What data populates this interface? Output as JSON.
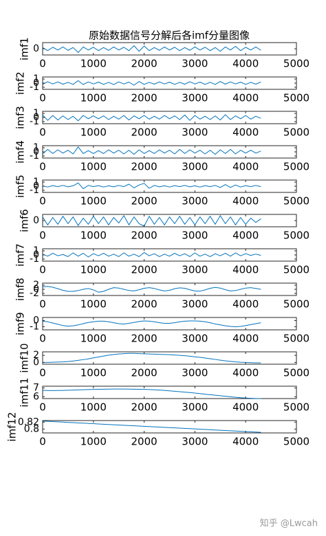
{
  "title": "原始数据信号分解后各imf分量图像",
  "watermark": "知乎 @Lwcah",
  "chart_data": [
    {
      "type": "line",
      "ylabel": "imf1",
      "color": "#0072bd",
      "xlim": [
        0,
        5000
      ],
      "xticks": [
        0,
        1000,
        2000,
        3000,
        4000,
        5000
      ],
      "ylim": [
        -1,
        1
      ],
      "yticks": [
        0
      ],
      "x": [
        0,
        100,
        200,
        300,
        400,
        500,
        600,
        700,
        800,
        900,
        1000,
        1100,
        1200,
        1300,
        1400,
        1500,
        1600,
        1700,
        1800,
        1900,
        2000,
        2100,
        2200,
        2300,
        2400,
        2500,
        2600,
        2700,
        2800,
        2900,
        3000,
        3100,
        3200,
        3300,
        3400,
        3500,
        3600,
        3700,
        3800,
        3900,
        4000,
        4100,
        4200,
        4300
      ],
      "values": [
        0.2,
        -0.3,
        0.25,
        -0.2,
        0.3,
        -0.25,
        0.2,
        -0.6,
        0.3,
        -0.2,
        0.25,
        -0.3,
        0.2,
        -0.25,
        0.3,
        -0.2,
        0.25,
        -0.3,
        0.5,
        -0.4,
        0.45,
        -0.3,
        0.2,
        -0.25,
        0.3,
        -0.2,
        0.25,
        -0.3,
        0.2,
        -0.25,
        0.3,
        -0.2,
        0.25,
        -0.3,
        0.2,
        -0.4,
        0.3,
        -0.2,
        0.4,
        -0.3,
        0.25,
        -0.2,
        0.3,
        -0.25
      ]
    },
    {
      "type": "line",
      "ylabel": "imf2",
      "color": "#0072bd",
      "xlim": [
        0,
        5000
      ],
      "xticks": [
        0,
        1000,
        2000,
        3000,
        4000,
        5000
      ],
      "ylim": [
        -1.5,
        1.5
      ],
      "yticks": [
        -1,
        0,
        1
      ],
      "x": [
        0,
        100,
        200,
        300,
        400,
        500,
        600,
        700,
        800,
        900,
        1000,
        1100,
        1200,
        1300,
        1400,
        1500,
        1600,
        1700,
        1800,
        1900,
        2000,
        2100,
        2200,
        2300,
        2400,
        2500,
        2600,
        2700,
        2800,
        2900,
        3000,
        3100,
        3200,
        3300,
        3400,
        3500,
        3600,
        3700,
        3800,
        3900,
        4000,
        4100,
        4200,
        4300
      ],
      "values": [
        -0.3,
        0.35,
        -0.2,
        0.3,
        -0.25,
        0.2,
        -0.3,
        0.6,
        -0.35,
        0.3,
        -0.2,
        0.25,
        -0.3,
        0.2,
        -0.35,
        0.3,
        -0.2,
        0.25,
        -0.5,
        0.4,
        -0.3,
        0.2,
        -0.25,
        0.3,
        -0.2,
        0.25,
        -0.3,
        0.2,
        -0.25,
        0.35,
        -0.2,
        0.25,
        -0.3,
        0.2,
        -0.3,
        0.4,
        -0.25,
        0.3,
        -0.2,
        0.25,
        -0.3,
        0.2,
        -0.25,
        0.3
      ]
    },
    {
      "type": "line",
      "ylabel": "imf3",
      "color": "#0072bd",
      "xlim": [
        0,
        5000
      ],
      "xticks": [
        0,
        1000,
        2000,
        3000,
        4000,
        5000
      ],
      "ylim": [
        -1.5,
        1.5
      ],
      "yticks": [
        -1,
        0,
        1
      ],
      "x": [
        0,
        100,
        200,
        300,
        400,
        500,
        600,
        700,
        800,
        900,
        1000,
        1100,
        1200,
        1300,
        1400,
        1500,
        1600,
        1700,
        1800,
        1900,
        2000,
        2100,
        2200,
        2300,
        2400,
        2500,
        2600,
        2700,
        2800,
        2900,
        3000,
        3100,
        3200,
        3300,
        3400,
        3500,
        3600,
        3700,
        3800,
        3900,
        4000,
        4100,
        4200,
        4300
      ],
      "values": [
        0.6,
        -0.7,
        0.5,
        -0.6,
        0.4,
        -0.5,
        0.3,
        -0.8,
        0.5,
        -0.3,
        0.4,
        -0.3,
        0.4,
        -0.5,
        0.3,
        -0.4,
        0.5,
        -0.6,
        0.4,
        -0.3,
        0.5,
        -0.4,
        0.3,
        -0.4,
        0.5,
        -0.3,
        0.4,
        -0.5,
        0.6,
        -0.7,
        0.5,
        -0.4,
        0.3,
        -0.5,
        0.4,
        -0.6,
        0.7,
        -0.5,
        0.4,
        -0.3,
        0.5,
        -0.4,
        0.3,
        -0.2
      ]
    },
    {
      "type": "line",
      "ylabel": "imf4",
      "color": "#0072bd",
      "xlim": [
        0,
        5000
      ],
      "xticks": [
        0,
        1000,
        2000,
        3000,
        4000,
        5000
      ],
      "ylim": [
        -1.5,
        1.5
      ],
      "yticks": [
        -1,
        0,
        1
      ],
      "x": [
        0,
        100,
        200,
        300,
        400,
        500,
        600,
        700,
        800,
        900,
        1000,
        1100,
        1200,
        1300,
        1400,
        1500,
        1600,
        1700,
        1800,
        1900,
        2000,
        2100,
        2200,
        2300,
        2400,
        2500,
        2600,
        2700,
        2800,
        2900,
        3000,
        3100,
        3200,
        3300,
        3400,
        3500,
        3600,
        3700,
        3800,
        3900,
        4000,
        4100,
        4200,
        4300
      ],
      "values": [
        -0.5,
        0.6,
        -0.4,
        0.5,
        -0.3,
        0.4,
        -0.5,
        1.2,
        -0.4,
        0.3,
        -0.4,
        0.3,
        -0.4,
        0.5,
        -0.3,
        0.4,
        -0.5,
        0.4,
        -0.6,
        0.5,
        -0.4,
        0.3,
        -0.4,
        0.5,
        -0.3,
        0.4,
        -0.5,
        0.6,
        -0.4,
        0.5,
        -0.3,
        0.4,
        -0.5,
        0.4,
        -0.6,
        0.5,
        -0.4,
        0.6,
        -0.5,
        0.4,
        -0.3,
        0.4,
        -0.3,
        0.2
      ]
    },
    {
      "type": "line",
      "ylabel": "imf5",
      "color": "#0072bd",
      "xlim": [
        0,
        5000
      ],
      "xticks": [
        0,
        1000,
        2000,
        3000,
        4000,
        5000
      ],
      "ylim": [
        -1.5,
        1.5
      ],
      "yticks": [
        -1,
        0,
        1
      ],
      "x": [
        0,
        100,
        200,
        300,
        400,
        500,
        600,
        700,
        800,
        900,
        1000,
        1100,
        1200,
        1300,
        1400,
        1500,
        1600,
        1700,
        1800,
        1900,
        2000,
        2100,
        2200,
        2300,
        2400,
        2500,
        2600,
        2700,
        2800,
        2900,
        3000,
        3100,
        3200,
        3300,
        3400,
        3500,
        3600,
        3700,
        3800,
        3900,
        4000,
        4100,
        4200,
        4300
      ],
      "values": [
        0.1,
        -0.2,
        0.15,
        -0.1,
        0.2,
        -0.15,
        0.1,
        0.8,
        -0.6,
        0.2,
        -0.1,
        0.15,
        -0.2,
        0.1,
        -0.15,
        0.2,
        -0.1,
        0.5,
        -0.4,
        0.3,
        0.7,
        -0.5,
        0.2,
        -0.15,
        0.1,
        -0.2,
        0.15,
        -0.1,
        0.2,
        -0.15,
        0.1,
        -0.2,
        0.15,
        -0.1,
        0.2,
        -0.3,
        0.4,
        -0.3,
        0.3,
        -0.2,
        0.15,
        -0.1,
        0.2,
        -0.1
      ]
    },
    {
      "type": "line",
      "ylabel": "imf6",
      "color": "#0072bd",
      "xlim": [
        0,
        5000
      ],
      "xticks": [
        0,
        1000,
        2000,
        3000,
        4000,
        5000
      ],
      "ylim": [
        -1,
        1
      ],
      "yticks": [
        0
      ],
      "x": [
        0,
        100,
        200,
        300,
        400,
        500,
        600,
        700,
        800,
        900,
        1000,
        1100,
        1200,
        1300,
        1400,
        1500,
        1600,
        1700,
        1800,
        1900,
        2000,
        2100,
        2200,
        2300,
        2400,
        2500,
        2600,
        2700,
        2800,
        2900,
        3000,
        3100,
        3200,
        3300,
        3400,
        3500,
        3600,
        3700,
        3800,
        3900,
        4000,
        4100,
        4200,
        4300
      ],
      "values": [
        0.6,
        -0.7,
        0.5,
        -0.6,
        0.7,
        -0.5,
        0.6,
        -0.8,
        0.4,
        -0.6,
        0.7,
        -0.5,
        0.6,
        -0.7,
        0.5,
        -0.4,
        0.8,
        -0.7,
        0.6,
        -0.5,
        -0.9,
        0.7,
        -0.6,
        0.5,
        -0.7,
        0.6,
        -0.5,
        0.7,
        -0.6,
        0.5,
        -0.7,
        0.6,
        -0.5,
        0.7,
        -0.6,
        0.8,
        -0.5,
        0.6,
        -0.7,
        0.5,
        -0.6,
        0.4,
        -0.3,
        0.3
      ]
    },
    {
      "type": "line",
      "ylabel": "imf7",
      "color": "#0072bd",
      "xlim": [
        0,
        5000
      ],
      "xticks": [
        0,
        1000,
        2000,
        3000,
        4000,
        5000
      ],
      "ylim": [
        -1.5,
        1.5
      ],
      "yticks": [
        -1,
        0,
        1
      ],
      "x": [
        0,
        100,
        200,
        300,
        400,
        500,
        600,
        700,
        800,
        900,
        1000,
        1100,
        1200,
        1300,
        1400,
        1500,
        1600,
        1700,
        1800,
        1900,
        2000,
        2100,
        2200,
        2300,
        2400,
        2500,
        2600,
        2700,
        2800,
        2900,
        3000,
        3100,
        3200,
        3300,
        3400,
        3500,
        3600,
        3700,
        3800,
        3900,
        4000,
        4100,
        4200,
        4300
      ],
      "values": [
        0.2,
        -0.3,
        0.4,
        -0.2,
        0.1,
        -0.4,
        0.5,
        -0.3,
        0.4,
        -0.5,
        0.3,
        -0.2,
        0.4,
        -0.3,
        0.2,
        -0.4,
        0.5,
        -0.3,
        0.2,
        -0.4,
        0.6,
        -0.2,
        0.3,
        -0.4,
        0.2,
        -0.3,
        0.4,
        -0.2,
        0.3,
        -0.4,
        0.5,
        -0.3,
        0.2,
        -0.4,
        0.3,
        -0.2,
        0.4,
        -0.3,
        0.5,
        -0.2,
        0.3,
        -0.1,
        0.2,
        -0.1
      ]
    },
    {
      "type": "line",
      "ylabel": "imf8",
      "color": "#0072bd",
      "xlim": [
        0,
        5000
      ],
      "xticks": [
        0,
        1000,
        2000,
        3000,
        4000,
        5000
      ],
      "ylim": [
        -3,
        3
      ],
      "yticks": [
        -2,
        0,
        2
      ],
      "x": [
        0,
        100,
        200,
        300,
        400,
        500,
        600,
        700,
        800,
        900,
        1000,
        1100,
        1200,
        1300,
        1400,
        1500,
        1600,
        1700,
        1800,
        1900,
        2000,
        2100,
        2200,
        2300,
        2400,
        2500,
        2600,
        2700,
        2800,
        2900,
        3000,
        3100,
        3200,
        3300,
        3400,
        3500,
        3600,
        3700,
        3800,
        3900,
        4000,
        4100,
        4200,
        4300
      ],
      "values": [
        1.2,
        1.4,
        1.0,
        0.3,
        -0.5,
        -1.0,
        -1.0,
        -0.6,
        0.0,
        0.4,
        -0.3,
        -1.4,
        -1.0,
        0.0,
        0.8,
        0.6,
        0.0,
        -0.6,
        -0.8,
        -0.2,
        0.5,
        0.8,
        0.4,
        -0.3,
        -0.8,
        -0.5,
        0.3,
        0.7,
        0.5,
        -0.2,
        -0.8,
        -0.9,
        -0.3,
        0.5,
        0.9,
        0.6,
        -0.2,
        -0.8,
        -0.6,
        0.0,
        0.6,
        0.8,
        0.4,
        0.0
      ]
    },
    {
      "type": "line",
      "ylabel": "imf9",
      "color": "#0072bd",
      "xlim": [
        0,
        5000
      ],
      "xticks": [
        0,
        1000,
        2000,
        3000,
        4000,
        5000
      ],
      "ylim": [
        -1.5,
        0.5
      ],
      "yticks": [
        -1,
        0
      ],
      "x": [
        0,
        100,
        200,
        300,
        400,
        500,
        600,
        700,
        800,
        900,
        1000,
        1100,
        1200,
        1300,
        1400,
        1500,
        1600,
        1700,
        1800,
        1900,
        2000,
        2100,
        2200,
        2300,
        2400,
        2500,
        2600,
        2700,
        2800,
        2900,
        3000,
        3100,
        3200,
        3300,
        3400,
        3500,
        3600,
        3700,
        3800,
        3900,
        4000,
        4100,
        4200,
        4300
      ],
      "values": [
        -0.1,
        -0.2,
        -0.4,
        -0.6,
        -0.8,
        -0.9,
        -0.85,
        -0.7,
        -0.5,
        -0.3,
        -0.2,
        -0.1,
        -0.1,
        -0.2,
        -0.35,
        -0.5,
        -0.55,
        -0.45,
        -0.3,
        -0.15,
        -0.05,
        -0.1,
        -0.2,
        -0.35,
        -0.45,
        -0.45,
        -0.35,
        -0.2,
        -0.1,
        -0.05,
        -0.05,
        -0.1,
        -0.2,
        -0.35,
        -0.55,
        -0.7,
        -0.85,
        -0.95,
        -1.0,
        -0.95,
        -0.8,
        -0.65,
        -0.5,
        -0.35
      ]
    },
    {
      "type": "line",
      "ylabel": "imf10",
      "color": "#0072bd",
      "xlim": [
        0,
        5000
      ],
      "xticks": [
        0,
        1000,
        2000,
        3000,
        4000,
        5000
      ],
      "ylim": [
        -0.5,
        3
      ],
      "yticks": [
        0,
        2
      ],
      "x": [
        0,
        100,
        200,
        300,
        400,
        500,
        600,
        700,
        800,
        900,
        1000,
        1100,
        1200,
        1300,
        1400,
        1500,
        1600,
        1700,
        1800,
        1900,
        2000,
        2100,
        2200,
        2300,
        2400,
        2500,
        2600,
        2700,
        2800,
        2900,
        3000,
        3100,
        3200,
        3300,
        3400,
        3500,
        3600,
        3700,
        3800,
        3900,
        4000,
        4100,
        4200,
        4300
      ],
      "values": [
        0.0,
        0.02,
        0.05,
        0.1,
        0.15,
        0.25,
        0.4,
        0.6,
        0.8,
        1.0,
        1.3,
        1.55,
        1.8,
        2.05,
        2.25,
        2.4,
        2.5,
        2.55,
        2.55,
        2.5,
        2.45,
        2.4,
        2.35,
        2.3,
        2.25,
        2.2,
        2.1,
        2.0,
        1.9,
        1.75,
        1.6,
        1.45,
        1.25,
        1.05,
        0.85,
        0.65,
        0.45,
        0.3,
        0.15,
        0.05,
        0.0,
        -0.05,
        -0.1,
        -0.1
      ]
    },
    {
      "type": "line",
      "ylabel": "imf11",
      "color": "#0072bd",
      "xlim": [
        0,
        5000
      ],
      "xticks": [
        0,
        1000,
        2000,
        3000,
        4000,
        5000
      ],
      "ylim": [
        5.8,
        7.2
      ],
      "yticks": [
        6,
        7
      ],
      "x": [
        0,
        100,
        200,
        300,
        400,
        500,
        600,
        700,
        800,
        900,
        1000,
        1100,
        1200,
        1300,
        1400,
        1500,
        1600,
        1700,
        1800,
        1900,
        2000,
        2100,
        2200,
        2300,
        2400,
        2500,
        2600,
        2700,
        2800,
        2900,
        3000,
        3100,
        3200,
        3300,
        3400,
        3500,
        3600,
        3700,
        3800,
        3900,
        4000,
        4100,
        4200,
        4300
      ],
      "values": [
        6.72,
        6.71,
        6.7,
        6.71,
        6.72,
        6.74,
        6.76,
        6.78,
        6.8,
        6.82,
        6.84,
        6.85,
        6.86,
        6.87,
        6.88,
        6.88,
        6.88,
        6.87,
        6.86,
        6.85,
        6.84,
        6.82,
        6.79,
        6.76,
        6.72,
        6.68,
        6.63,
        6.58,
        6.53,
        6.48,
        6.42,
        6.36,
        6.3,
        6.24,
        6.18,
        6.12,
        6.06,
        6.0,
        5.95,
        5.9,
        5.86,
        5.83,
        5.81,
        5.8
      ]
    },
    {
      "type": "line",
      "ylabel": "imf12",
      "color": "#0072bd",
      "xlim": [
        0,
        5000
      ],
      "xticks": [
        0,
        1000,
        2000,
        3000,
        4000,
        5000
      ],
      "ylim": [
        0.789,
        0.8245
      ],
      "yticks": [
        0.8,
        0.82
      ],
      "x": [
        0,
        100,
        200,
        300,
        400,
        500,
        600,
        700,
        800,
        900,
        1000,
        1100,
        1200,
        1300,
        1400,
        1500,
        1600,
        1700,
        1800,
        1900,
        2000,
        2100,
        2200,
        2300,
        2400,
        2500,
        2600,
        2700,
        2800,
        2900,
        3000,
        3100,
        3200,
        3300,
        3400,
        3500,
        3600,
        3700,
        3800,
        3900,
        4000,
        4100,
        4200,
        4300
      ],
      "values": [
        0.823,
        0.8222,
        0.8215,
        0.8207,
        0.82,
        0.8192,
        0.8185,
        0.8177,
        0.817,
        0.8162,
        0.8155,
        0.8147,
        0.814,
        0.8132,
        0.8125,
        0.8117,
        0.811,
        0.8102,
        0.8095,
        0.8087,
        0.808,
        0.8072,
        0.8065,
        0.8057,
        0.805,
        0.8042,
        0.8035,
        0.8027,
        0.802,
        0.8012,
        0.8005,
        0.7997,
        0.799,
        0.7982,
        0.7975,
        0.7967,
        0.796,
        0.7952,
        0.7945,
        0.7937,
        0.793,
        0.7922,
        0.7915,
        0.7907
      ]
    }
  ]
}
